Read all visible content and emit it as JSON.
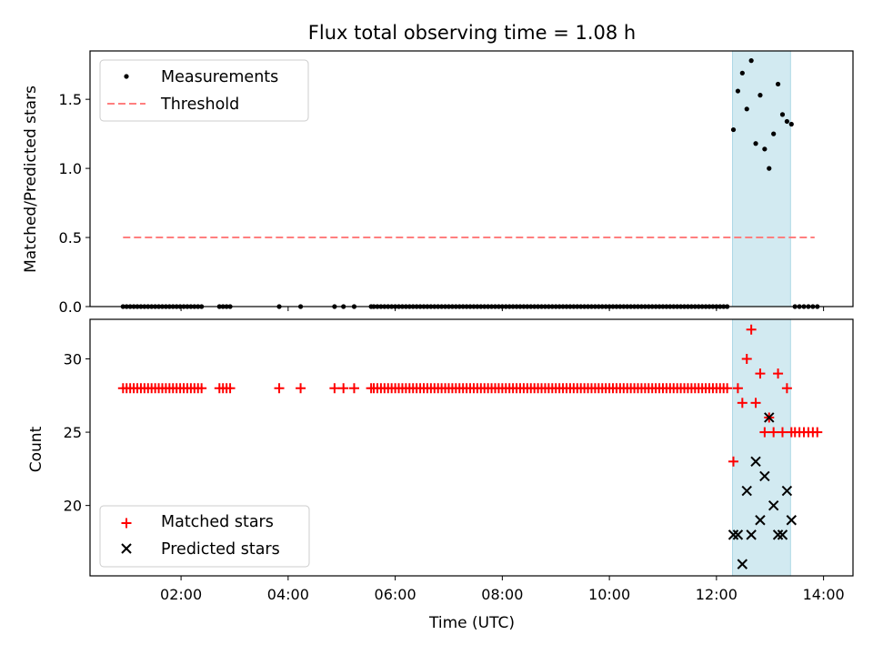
{
  "chart_data": [
    {
      "type": "scatter",
      "title": "Flux total observing time = 1.08 h",
      "xlabel": "",
      "ylabel": "Matched/Predicted stars",
      "xlim": [
        "00:18",
        "14:33"
      ],
      "ylim": [
        0,
        1.85
      ],
      "yticks": [
        0.0,
        0.5,
        1.0,
        1.5
      ],
      "ytick_labels": [
        "0.0",
        "0.5",
        "1.0",
        "1.5"
      ],
      "shaded_interval": {
        "start": "12:18",
        "end": "13:23",
        "color": "#add8e6"
      },
      "threshold": {
        "value": 0.5,
        "x_start": "00:55",
        "x_end": "13:50",
        "color": "#ff7f7f"
      },
      "legend": {
        "position": "upper left",
        "entries": [
          "Measurements",
          "Threshold"
        ]
      },
      "series": [
        {
          "name": "Measurements",
          "color": "#000000",
          "x": [
            "00:55",
            "00:59",
            "01:03",
            "01:07",
            "01:11",
            "01:15",
            "01:19",
            "01:23",
            "01:27",
            "01:31",
            "01:35",
            "01:39",
            "01:43",
            "01:47",
            "01:51",
            "01:55",
            "01:59",
            "02:03",
            "02:07",
            "02:11",
            "02:15",
            "02:19",
            "02:23",
            "02:43",
            "02:47",
            "02:51",
            "02:55",
            "03:50",
            "04:14",
            "04:52",
            "05:02",
            "05:14",
            "05:33",
            "05:36",
            "05:40",
            "05:44",
            "05:48",
            "05:52",
            "05:56",
            "06:00",
            "06:04",
            "06:08",
            "06:12",
            "06:16",
            "06:20",
            "06:24",
            "06:28",
            "06:32",
            "06:36",
            "06:40",
            "06:44",
            "06:48",
            "06:52",
            "06:56",
            "07:00",
            "07:04",
            "07:08",
            "07:12",
            "07:16",
            "07:20",
            "07:24",
            "07:28",
            "07:32",
            "07:36",
            "07:40",
            "07:44",
            "07:48",
            "07:52",
            "07:56",
            "08:00",
            "08:04",
            "08:08",
            "08:12",
            "08:16",
            "08:20",
            "08:24",
            "08:28",
            "08:32",
            "08:36",
            "08:40",
            "08:44",
            "08:48",
            "08:52",
            "08:56",
            "09:00",
            "09:04",
            "09:08",
            "09:12",
            "09:16",
            "09:20",
            "09:24",
            "09:28",
            "09:32",
            "09:36",
            "09:40",
            "09:44",
            "09:48",
            "09:52",
            "09:56",
            "10:00",
            "10:04",
            "10:08",
            "10:12",
            "10:16",
            "10:20",
            "10:24",
            "10:28",
            "10:32",
            "10:36",
            "10:40",
            "10:44",
            "10:48",
            "10:52",
            "10:56",
            "11:00",
            "11:04",
            "11:08",
            "11:12",
            "11:16",
            "11:20",
            "11:24",
            "11:28",
            "11:32",
            "11:36",
            "11:40",
            "11:44",
            "11:48",
            "11:52",
            "11:56",
            "12:00",
            "12:04",
            "12:08",
            "12:12",
            "12:19",
            "12:24",
            "12:29",
            "12:34",
            "12:39",
            "12:44",
            "12:49",
            "12:54",
            "12:59",
            "13:04",
            "13:09",
            "13:14",
            "13:19",
            "13:24",
            "13:28",
            "13:33",
            "13:38",
            "13:43",
            "13:48",
            "13:53"
          ],
          "y": [
            0,
            0,
            0,
            0,
            0,
            0,
            0,
            0,
            0,
            0,
            0,
            0,
            0,
            0,
            0,
            0,
            0,
            0,
            0,
            0,
            0,
            0,
            0,
            0,
            0,
            0,
            0,
            0,
            0,
            0,
            0,
            0,
            0,
            0,
            0,
            0,
            0,
            0,
            0,
            0,
            0,
            0,
            0,
            0,
            0,
            0,
            0,
            0,
            0,
            0,
            0,
            0,
            0,
            0,
            0,
            0,
            0,
            0,
            0,
            0,
            0,
            0,
            0,
            0,
            0,
            0,
            0,
            0,
            0,
            0,
            0,
            0,
            0,
            0,
            0,
            0,
            0,
            0,
            0,
            0,
            0,
            0,
            0,
            0,
            0,
            0,
            0,
            0,
            0,
            0,
            0,
            0,
            0,
            0,
            0,
            0,
            0,
            0,
            0,
            0,
            0,
            0,
            0,
            0,
            0,
            0,
            0,
            0,
            0,
            0,
            0,
            0,
            0,
            0,
            0,
            0,
            0,
            0,
            0,
            0,
            0,
            0,
            0,
            0,
            0,
            0,
            0,
            0,
            0,
            0,
            0,
            0,
            0,
            1.28,
            1.56,
            1.69,
            1.43,
            1.78,
            1.18,
            1.53,
            1.14,
            1.0,
            1.25,
            1.61,
            1.39,
            1.34,
            1.32,
            0,
            0,
            0,
            0,
            0,
            0
          ]
        },
        {
          "name": "Threshold",
          "color": "#ff7f7f",
          "x": [
            "00:55",
            "13:50"
          ],
          "y": [
            0.5,
            0.5
          ]
        }
      ]
    },
    {
      "type": "scatter",
      "title": "",
      "xlabel": "Time (UTC)",
      "ylabel": "Count",
      "xlim": [
        "00:18",
        "14:33"
      ],
      "ylim": [
        15.2,
        32.7
      ],
      "yticks": [
        20,
        25,
        30
      ],
      "ytick_labels": [
        "20",
        "25",
        "30"
      ],
      "xticks": [
        "02:00",
        "04:00",
        "06:00",
        "08:00",
        "10:00",
        "12:00",
        "14:00"
      ],
      "xtick_labels": [
        "02:00",
        "04:00",
        "06:00",
        "08:00",
        "10:00",
        "12:00",
        "14:00"
      ],
      "shaded_interval": {
        "start": "12:18",
        "end": "13:23",
        "color": "#add8e6"
      },
      "legend": {
        "position": "lower left",
        "entries": [
          "Matched stars",
          "Predicted stars"
        ]
      },
      "series": [
        {
          "name": "Matched stars",
          "color": "#ff0000",
          "marker": "plus",
          "x": [
            "00:55",
            "00:59",
            "01:03",
            "01:07",
            "01:11",
            "01:15",
            "01:19",
            "01:23",
            "01:27",
            "01:31",
            "01:35",
            "01:39",
            "01:43",
            "01:47",
            "01:51",
            "01:55",
            "01:59",
            "02:03",
            "02:07",
            "02:11",
            "02:15",
            "02:19",
            "02:23",
            "02:43",
            "02:47",
            "02:51",
            "02:55",
            "03:50",
            "04:14",
            "04:52",
            "05:02",
            "05:14",
            "05:33",
            "05:36",
            "05:40",
            "05:44",
            "05:48",
            "05:52",
            "05:56",
            "06:00",
            "06:04",
            "06:08",
            "06:12",
            "06:16",
            "06:20",
            "06:24",
            "06:28",
            "06:32",
            "06:36",
            "06:40",
            "06:44",
            "06:48",
            "06:52",
            "06:56",
            "07:00",
            "07:04",
            "07:08",
            "07:12",
            "07:16",
            "07:20",
            "07:24",
            "07:28",
            "07:32",
            "07:36",
            "07:40",
            "07:44",
            "07:48",
            "07:52",
            "07:56",
            "08:00",
            "08:04",
            "08:08",
            "08:12",
            "08:16",
            "08:20",
            "08:24",
            "08:28",
            "08:32",
            "08:36",
            "08:40",
            "08:44",
            "08:48",
            "08:52",
            "08:56",
            "09:00",
            "09:04",
            "09:08",
            "09:12",
            "09:16",
            "09:20",
            "09:24",
            "09:28",
            "09:32",
            "09:36",
            "09:40",
            "09:44",
            "09:48",
            "09:52",
            "09:56",
            "10:00",
            "10:04",
            "10:08",
            "10:12",
            "10:16",
            "10:20",
            "10:24",
            "10:28",
            "10:32",
            "10:36",
            "10:40",
            "10:44",
            "10:48",
            "10:52",
            "10:56",
            "11:00",
            "11:04",
            "11:08",
            "11:12",
            "11:16",
            "11:20",
            "11:24",
            "11:28",
            "11:32",
            "11:36",
            "11:40",
            "11:44",
            "11:48",
            "11:52",
            "11:56",
            "12:00",
            "12:04",
            "12:08",
            "12:12",
            "12:19",
            "12:24",
            "12:29",
            "12:34",
            "12:39",
            "12:44",
            "12:49",
            "12:54",
            "12:59",
            "13:04",
            "13:09",
            "13:14",
            "13:19",
            "13:24",
            "13:28",
            "13:33",
            "13:38",
            "13:43",
            "13:48",
            "13:53"
          ],
          "y": [
            28,
            28,
            28,
            28,
            28,
            28,
            28,
            28,
            28,
            28,
            28,
            28,
            28,
            28,
            28,
            28,
            28,
            28,
            28,
            28,
            28,
            28,
            28,
            28,
            28,
            28,
            28,
            28,
            28,
            28,
            28,
            28,
            28,
            28,
            28,
            28,
            28,
            28,
            28,
            28,
            28,
            28,
            28,
            28,
            28,
            28,
            28,
            28,
            28,
            28,
            28,
            28,
            28,
            28,
            28,
            28,
            28,
            28,
            28,
            28,
            28,
            28,
            28,
            28,
            28,
            28,
            28,
            28,
            28,
            28,
            28,
            28,
            28,
            28,
            28,
            28,
            28,
            28,
            28,
            28,
            28,
            28,
            28,
            28,
            28,
            28,
            28,
            28,
            28,
            28,
            28,
            28,
            28,
            28,
            28,
            28,
            28,
            28,
            28,
            28,
            28,
            28,
            28,
            28,
            28,
            28,
            28,
            28,
            28,
            28,
            28,
            28,
            28,
            28,
            28,
            28,
            28,
            28,
            28,
            28,
            28,
            28,
            28,
            28,
            28,
            28,
            28,
            28,
            28,
            28,
            28,
            28,
            28,
            23,
            28,
            27,
            30,
            32,
            27,
            29,
            25,
            26,
            25,
            29,
            25,
            28,
            25,
            25,
            25,
            25,
            25,
            25,
            25
          ]
        },
        {
          "name": "Predicted stars",
          "color": "#000000",
          "marker": "x",
          "x": [
            "12:19",
            "12:24",
            "12:29",
            "12:34",
            "12:39",
            "12:44",
            "12:49",
            "12:54",
            "12:59",
            "13:04",
            "13:09",
            "13:14",
            "13:19",
            "13:24"
          ],
          "y": [
            18,
            18,
            16,
            21,
            18,
            23,
            19,
            22,
            26,
            20,
            18,
            18,
            21,
            19
          ]
        }
      ]
    }
  ]
}
